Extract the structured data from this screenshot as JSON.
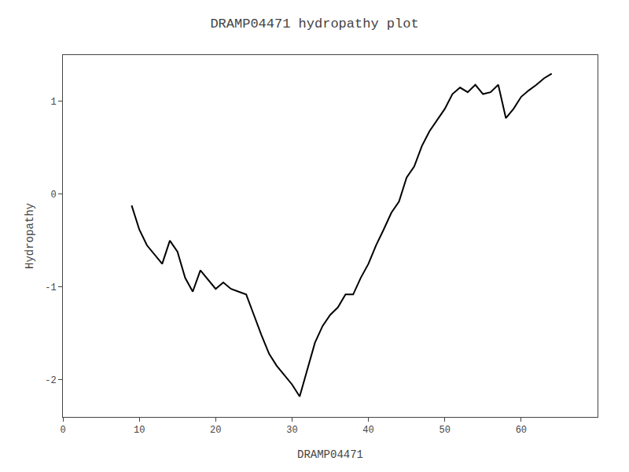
{
  "chart_data": {
    "type": "line",
    "title": "DRAMP04471 hydropathy plot",
    "xlabel": "DRAMP04471",
    "ylabel": "Hydropathy",
    "x": [
      9,
      10,
      11,
      12,
      13,
      14,
      15,
      16,
      17,
      18,
      19,
      20,
      21,
      22,
      23,
      24,
      25,
      26,
      27,
      28,
      29,
      30,
      31,
      32,
      33,
      34,
      35,
      36,
      37,
      38,
      39,
      40,
      41,
      42,
      43,
      44,
      45,
      46,
      47,
      48,
      49,
      50,
      51,
      52,
      53,
      54,
      55,
      56,
      57,
      58,
      59,
      60,
      61,
      62,
      63,
      64
    ],
    "values": [
      -0.12,
      -0.38,
      -0.55,
      -0.65,
      -0.75,
      -0.5,
      -0.62,
      -0.9,
      -1.05,
      -0.82,
      -0.92,
      -1.02,
      -0.95,
      -1.02,
      -1.05,
      -1.08,
      -1.3,
      -1.52,
      -1.72,
      -1.85,
      -1.95,
      -2.05,
      -2.18,
      -1.9,
      -1.6,
      -1.42,
      -1.3,
      -1.22,
      -1.08,
      -1.08,
      -0.9,
      -0.75,
      -0.55,
      -0.38,
      -0.2,
      -0.08,
      0.18,
      0.3,
      0.52,
      0.68,
      0.8,
      0.92,
      1.08,
      1.15,
      1.1,
      1.18,
      1.08,
      1.1,
      1.18,
      0.82,
      0.92,
      1.05,
      1.12,
      1.18,
      1.25,
      1.3
    ],
    "color": "#000000",
    "xlim": [
      0,
      70
    ],
    "ylim": [
      -2.4,
      1.5
    ],
    "xticks": [
      0,
      10,
      20,
      30,
      40,
      50,
      60
    ],
    "yticks": [
      -2,
      -1,
      0,
      1
    ],
    "grid": false
  }
}
